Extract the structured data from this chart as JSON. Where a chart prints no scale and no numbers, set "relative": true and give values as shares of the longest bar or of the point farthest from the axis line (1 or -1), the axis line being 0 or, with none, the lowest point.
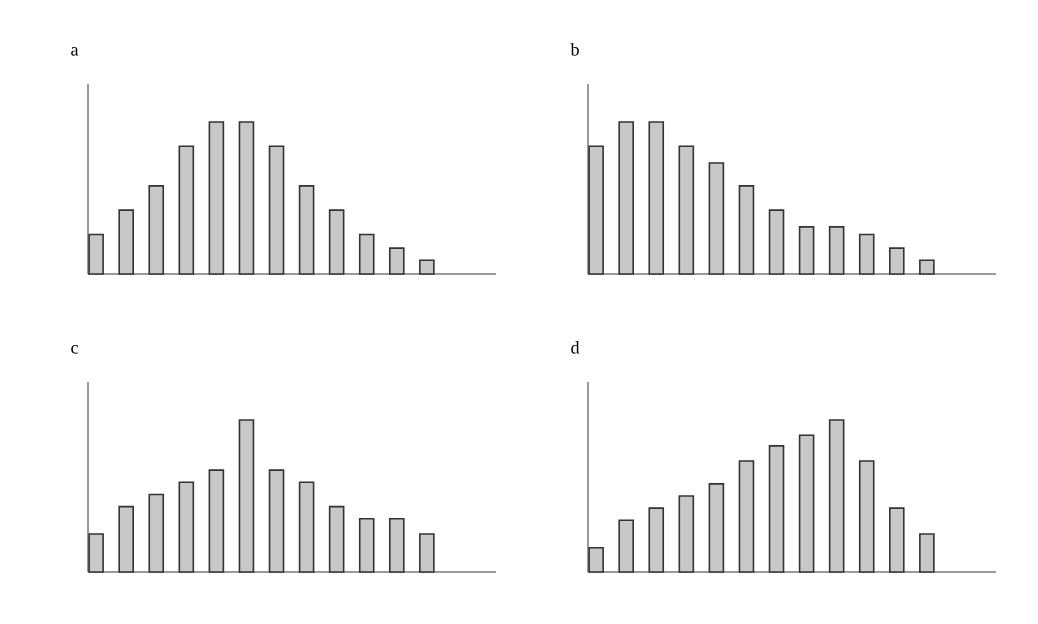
{
  "chart_data": [
    {
      "type": "bar",
      "title": "a",
      "relative": true,
      "color": "#c8c8c8",
      "categories": [
        null,
        null,
        null,
        null,
        null,
        null,
        null,
        null,
        null,
        null,
        null,
        null
      ],
      "values": [
        0.26,
        0.42,
        0.58,
        0.84,
        1,
        1,
        0.84,
        0.58,
        0.42,
        0.26,
        0.17,
        0.09
      ]
    },
    {
      "type": "bar",
      "title": "b",
      "relative": true,
      "color": "#c8c8c8",
      "categories": [
        null,
        null,
        null,
        null,
        null,
        null,
        null,
        null,
        null,
        null,
        null,
        null
      ],
      "values": [
        0.84,
        1,
        1,
        0.84,
        0.73,
        0.58,
        0.42,
        0.31,
        0.31,
        0.26,
        0.17,
        0.09
      ]
    },
    {
      "type": "bar",
      "title": "c",
      "relative": true,
      "color": "#c8c8c8",
      "categories": [
        null,
        null,
        null,
        null,
        null,
        null,
        null,
        null,
        null,
        null,
        null,
        null
      ],
      "values": [
        0.25,
        0.43,
        0.51,
        0.59,
        0.67,
        1,
        0.67,
        0.59,
        0.43,
        0.35,
        0.35,
        0.25
      ]
    },
    {
      "type": "bar",
      "title": "d",
      "relative": true,
      "color": "#c8c8c8",
      "categories": [
        null,
        null,
        null,
        null,
        null,
        null,
        null,
        null,
        null,
        null,
        null,
        null
      ],
      "values": [
        0.16,
        0.34,
        0.42,
        0.5,
        0.58,
        0.73,
        0.83,
        0.9,
        1,
        0.73,
        0.42,
        0.25
      ]
    }
  ]
}
